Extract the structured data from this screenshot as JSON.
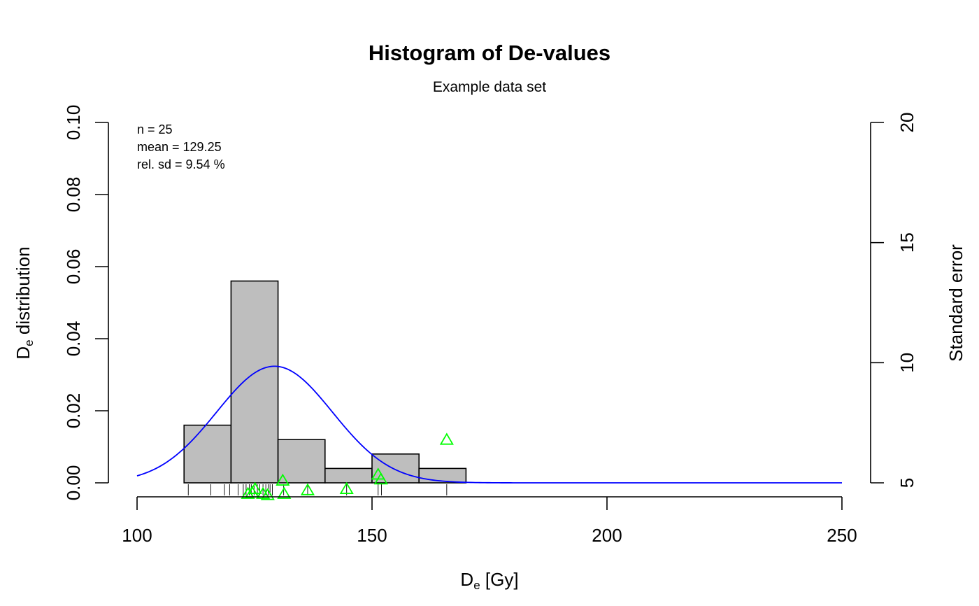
{
  "chart_data": {
    "type": "histogram",
    "title": "Histogram of De-values",
    "subtitle": "Example data set",
    "xlabel_main": "D",
    "xlabel_sub": "e",
    "xlabel_unit": " [Gy]",
    "ylabel_main": "D",
    "ylabel_sub": "e",
    "ylabel_rest": " distribution",
    "y2label": "Standard error",
    "xlim": [
      100,
      250
    ],
    "ylim": [
      0,
      0.1
    ],
    "y2lim": [
      5,
      20
    ],
    "x_ticks": [
      100,
      150,
      200,
      250
    ],
    "y_ticks": [
      0,
      0.02,
      0.04,
      0.06,
      0.08,
      0.1
    ],
    "y_tick_labels": [
      "0.00",
      "0.02",
      "0.04",
      "0.06",
      "0.08",
      "0.10"
    ],
    "y2_ticks": [
      5,
      10,
      15,
      20
    ],
    "bins": [
      {
        "start": 110,
        "end": 120,
        "density": 0.016
      },
      {
        "start": 120,
        "end": 130,
        "density": 0.056
      },
      {
        "start": 130,
        "end": 140,
        "density": 0.012
      },
      {
        "start": 140,
        "end": 150,
        "density": 0.004
      },
      {
        "start": 150,
        "end": 160,
        "density": 0.008
      },
      {
        "start": 160,
        "end": 170,
        "density": 0.004
      }
    ],
    "bar_color": "#bebebe",
    "normal_curve": {
      "mean": 129.25,
      "sd": 12.33,
      "color": "#0000ff"
    },
    "rug": [
      110.9,
      115.7,
      118.6,
      119.7,
      121.5,
      122.6,
      123.2,
      123.9,
      124.3,
      124.9,
      125.6,
      126.1,
      126.8,
      127.4,
      127.9,
      128.3,
      128.8,
      131.2,
      136.3,
      144.6,
      151.3,
      152.0,
      165.9
    ],
    "standard_errors": {
      "color": "#00ff00",
      "points": [
        {
          "x": 123.6,
          "y": 4.55
        },
        {
          "x": 124.5,
          "y": 4.6
        },
        {
          "x": 125.1,
          "y": 4.75
        },
        {
          "x": 126.8,
          "y": 4.55
        },
        {
          "x": 127.8,
          "y": 4.5
        },
        {
          "x": 131.0,
          "y": 5.1
        },
        {
          "x": 131.3,
          "y": 4.55
        },
        {
          "x": 136.3,
          "y": 4.7
        },
        {
          "x": 144.6,
          "y": 4.75
        },
        {
          "x": 151.3,
          "y": 5.35
        },
        {
          "x": 151.9,
          "y": 5.15
        },
        {
          "x": 165.9,
          "y": 6.8
        }
      ]
    },
    "stats": [
      "n = 25",
      "mean = 129.25",
      "rel. sd = 9.54 %"
    ]
  }
}
